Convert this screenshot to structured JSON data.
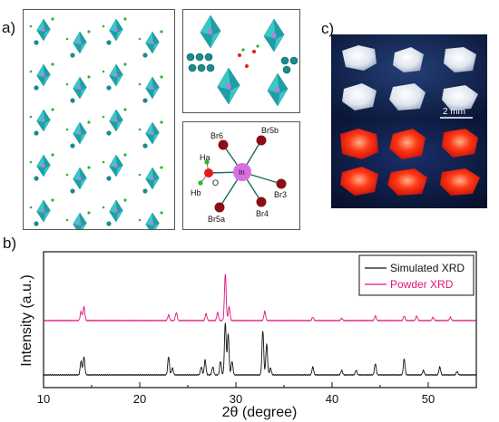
{
  "panel_labels": {
    "a": "a)",
    "b": "b)",
    "c": "c)"
  },
  "coordination": {
    "center": "In",
    "ligands": [
      "Br6",
      "Br5b",
      "Br3",
      "Br4",
      "Br5a"
    ],
    "oxygen": "O",
    "hydrogens": [
      "Ha",
      "Hb"
    ]
  },
  "photo": {
    "scale_bar": "2 mm"
  },
  "colors": {
    "octahedron": "#3cc6c8",
    "octahedron_dark": "#1f9ea3",
    "indium": "#d96ee0",
    "bromine": "#8b1016",
    "oxygen": "#e21d1d",
    "hydrogen": "#2fb52f",
    "simulated": "#111111",
    "powder": "#e0137a",
    "crystal_glow": "#ff2a10"
  },
  "chart_data": {
    "type": "line",
    "xlabel": "2θ (degree)",
    "ylabel": "Intensity (a.u.)",
    "xlim": [
      10,
      55
    ],
    "xticks": [
      10,
      20,
      30,
      40,
      50
    ],
    "legend_position": "top-right",
    "series": [
      {
        "name": "Simulated XRD",
        "color": "#111111",
        "baseline": 0.0,
        "peaks": [
          [
            13.9,
            0.12
          ],
          [
            14.2,
            0.16
          ],
          [
            23.0,
            0.16
          ],
          [
            23.4,
            0.06
          ],
          [
            26.4,
            0.07
          ],
          [
            26.8,
            0.13
          ],
          [
            27.6,
            0.07
          ],
          [
            28.4,
            0.12
          ],
          [
            28.9,
            0.46
          ],
          [
            29.2,
            0.36
          ],
          [
            29.6,
            0.12
          ],
          [
            32.8,
            0.39
          ],
          [
            33.2,
            0.27
          ],
          [
            33.6,
            0.06
          ],
          [
            38.0,
            0.07
          ],
          [
            41.0,
            0.04
          ],
          [
            42.5,
            0.04
          ],
          [
            44.5,
            0.1
          ],
          [
            47.5,
            0.14
          ],
          [
            49.5,
            0.04
          ],
          [
            51.2,
            0.07
          ],
          [
            53.0,
            0.03
          ]
        ]
      },
      {
        "name": "Powder XRD",
        "color": "#e0137a",
        "baseline": 0.5,
        "peaks": [
          [
            13.9,
            0.08
          ],
          [
            14.2,
            0.12
          ],
          [
            23.0,
            0.05
          ],
          [
            23.8,
            0.07
          ],
          [
            26.9,
            0.06
          ],
          [
            28.1,
            0.07
          ],
          [
            28.9,
            0.41
          ],
          [
            29.3,
            0.12
          ],
          [
            33.0,
            0.08
          ],
          [
            38.0,
            0.03
          ],
          [
            41.0,
            0.02
          ],
          [
            44.5,
            0.04
          ],
          [
            47.5,
            0.04
          ],
          [
            48.8,
            0.04
          ],
          [
            50.5,
            0.03
          ],
          [
            52.3,
            0.03
          ]
        ]
      }
    ]
  }
}
